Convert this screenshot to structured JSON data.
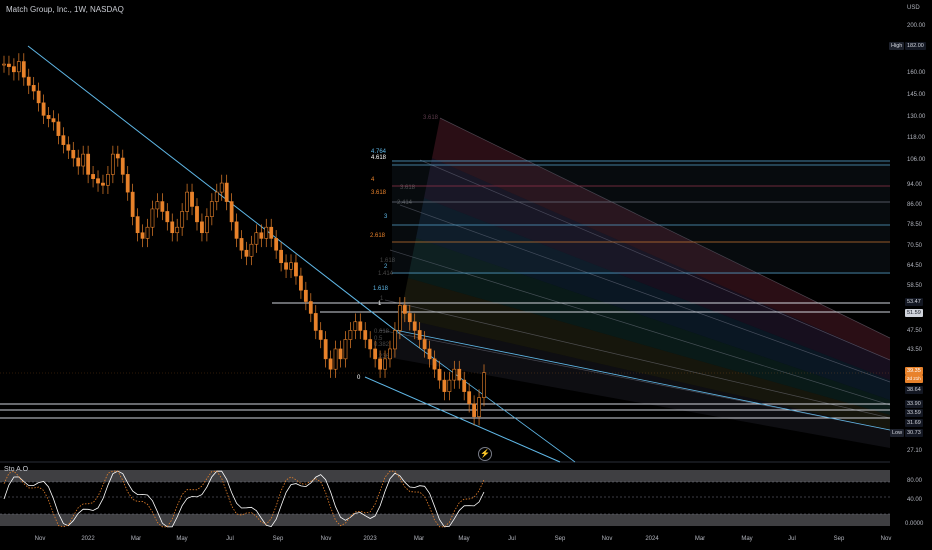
{
  "header": {
    "title": "Match Group, Inc., 1W, NASDAQ",
    "currency": "USD"
  },
  "price_axis": {
    "ticks": [
      "200.00",
      "182.00",
      "160.00",
      "145.00",
      "130.00",
      "118.00",
      "106.00",
      "94.00",
      "86.00",
      "78.50",
      "70.50",
      "64.50",
      "58.50",
      "53.47",
      "51.59",
      "47.50",
      "43.50",
      "39.35",
      "38.64",
      "33.90",
      "33.59",
      "31.69",
      "30.73",
      "27.10"
    ],
    "stoch_ticks": [
      "80.00",
      "40.00",
      "0.0000"
    ]
  },
  "badges": {
    "high_label": "High",
    "high_value": "182.00",
    "low_label": "Low",
    "low_value": "30.73",
    "current_price": "39.35",
    "current_sub": "2d 21h",
    "level_1": "53.47",
    "level_2": "51.59",
    "level_3": "38.64",
    "level_4": "33.90",
    "level_5": "33.59",
    "level_6": "31.69"
  },
  "time_axis": {
    "labels": [
      "Nov",
      "2022",
      "Mar",
      "May",
      "Jul",
      "Sep",
      "Nov",
      "2023",
      "Mar",
      "May",
      "Jul",
      "Sep",
      "Nov",
      "2024",
      "Mar",
      "May",
      "Jul",
      "Sep",
      "Nov"
    ]
  },
  "fib_levels": {
    "labels": [
      "4.764",
      "4.618",
      "4",
      "3.618",
      "3",
      "2.618",
      "2",
      "1.618",
      "1",
      "0"
    ],
    "upper_fan_label": "3.618",
    "mid_labels": [
      "3.618",
      "2.414",
      "1.618",
      "1.414",
      "1",
      "0.618",
      "0.5",
      "0.382",
      "0.236"
    ]
  },
  "colors": {
    "candle_up": "#e8822b",
    "candle_down": "#e8822b",
    "trend_line": "#5fb7e6",
    "stoch_k": "#e8822b",
    "stoch_d": "#ffffff",
    "stoch_signal": "#5fb7e6"
  },
  "indicator": {
    "title": "Sto A.O"
  },
  "icons": {
    "replay": "lightning-icon"
  },
  "chart_data": {
    "type": "candlestick",
    "title": "Match Group, Inc., 1W, NASDAQ",
    "y_scale": "log",
    "ylim": [
      27.1,
      200
    ],
    "high": 182.0,
    "low": 30.73,
    "last_close": 39.35,
    "approx_closes": [
      168,
      166,
      162,
      170,
      158,
      152,
      148,
      140,
      132,
      130,
      128,
      120,
      115,
      112,
      108,
      104,
      110,
      100,
      98,
      96,
      95,
      100,
      110,
      108,
      100,
      92,
      82,
      76,
      74,
      78,
      85,
      88,
      84,
      80,
      76,
      78,
      84,
      92,
      86,
      80,
      76,
      82,
      88,
      92,
      96,
      88,
      80,
      74,
      70,
      68,
      72,
      76,
      74,
      78,
      74,
      70,
      66,
      64,
      66,
      62,
      58,
      55,
      52,
      48,
      46,
      42,
      40,
      44,
      42,
      46,
      48,
      50,
      48,
      46,
      44,
      42,
      40,
      42,
      44,
      48,
      54,
      52,
      50,
      48,
      46,
      44,
      42,
      40,
      38,
      36,
      38,
      40,
      38,
      36,
      34,
      32,
      35,
      39.35
    ]
  }
}
